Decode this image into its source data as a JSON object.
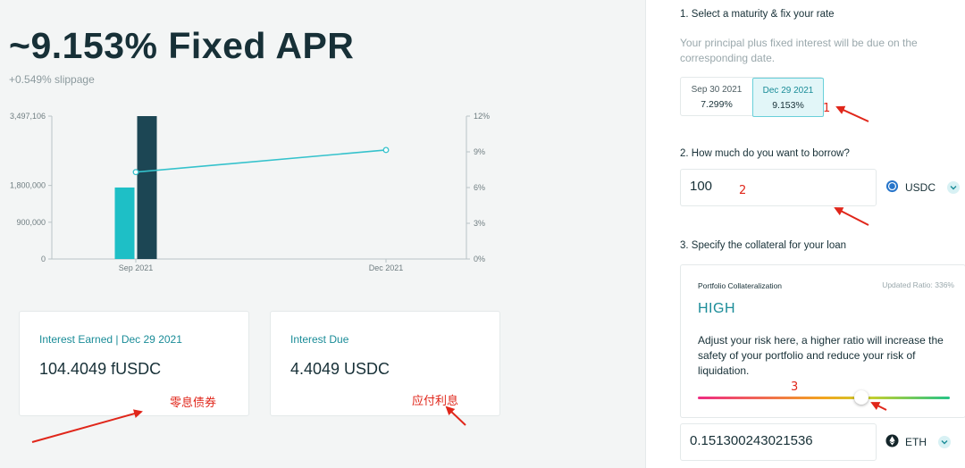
{
  "hero": {
    "apr_text": "~9.153% Fixed APR",
    "slippage": "+0.549% slippage"
  },
  "chart_data": {
    "type": "bar",
    "categories": [
      "Sep 2021",
      "Dec 2021"
    ],
    "left_axis_ticks": [
      "3,497,106",
      "1,800,000",
      "900,000",
      "0"
    ],
    "right_axis_ticks": [
      "12%",
      "9%",
      "6%",
      "3%",
      "0%"
    ],
    "series": [
      {
        "values": [
          1750000,
          null
        ],
        "color": "#1ebfc6"
      },
      {
        "values": [
          3497106,
          null
        ],
        "color": "#1c4654"
      }
    ],
    "rate_line": {
      "x": [
        "Sep 2021",
        "Dec 2021"
      ],
      "y": [
        7.299,
        9.153
      ],
      "color": "#35c2cc"
    },
    "left_ylim": [
      0,
      3497106
    ],
    "right_ylim": [
      0,
      12
    ]
  },
  "cards": {
    "interest_earned": {
      "title": "Interest Earned | Dec 29 2021",
      "value": "104.4049 fUSDC"
    },
    "interest_due": {
      "title": "Interest Due",
      "value": "4.4049 USDC"
    }
  },
  "annotations": {
    "zero_coupon": "零息债券",
    "interest_payable": "应付利息",
    "n1": "1",
    "n2": "2",
    "n3": "3"
  },
  "form": {
    "step1": "1. Select a maturity & fix your rate",
    "step1_desc": "Your principal plus fixed interest will be due on the corresponding date.",
    "maturities": [
      {
        "date": "Sep 30 2021",
        "rate": "7.299%"
      },
      {
        "date": "Dec 29 2021",
        "rate": "9.153%"
      }
    ],
    "step2": "2. How much do you want to borrow?",
    "borrow_value": "100",
    "borrow_asset": "USDC",
    "step3": "3. Specify the collateral for your loan",
    "collateral": {
      "label": "Portfolio Collateralization",
      "updated_ratio": "Updated Ratio: 336%",
      "level": "HIGH",
      "advice": "Adjust your risk here, a higher ratio will increase the safety of your portfolio and reduce your risk of liquidation.",
      "risk_slider_fraction": 0.62
    },
    "collateral_value": "0.151300243021536",
    "collateral_asset": "ETH"
  },
  "colors": {
    "accent": "#1a8c98",
    "dark": "#173037",
    "annotation": "#e0261a"
  }
}
